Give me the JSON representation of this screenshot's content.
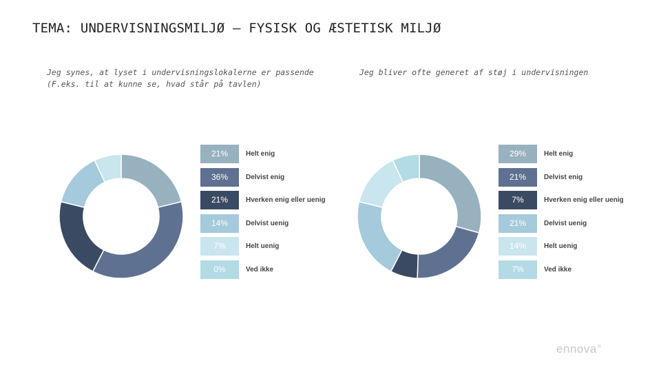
{
  "page": {
    "title": "TEMA: UNDERVISNINGSMILJØ – FYSISK OG ÆSTETISK MILJØ",
    "logo": "ennova",
    "logo_mark": "®"
  },
  "colors": {
    "helt_enig": "#97b1bf",
    "delvist_enig": "#5e7190",
    "hverken": "#3b4a63",
    "delvist_uenig": "#a4cadb",
    "helt_uenig": "#c9e5ee",
    "ved_ikke": "#b2dbe6"
  },
  "chart_data": [
    {
      "type": "pie",
      "title": "Jeg synes, at lyset i undervisningslokalerne er passende (F.eks. til at kunne se, hvad står på tavlen)",
      "title_lines": [
        "Jeg synes, at lyset i undervisningslokalerne er passende",
        "(F.eks. til at kunne se, hvad står på tavlen)"
      ],
      "legend_position": "right",
      "slices": [
        {
          "label": "Helt enig",
          "value": 21,
          "display": "21%",
          "color": "#97b1bf",
          "text_color": "#ffffff"
        },
        {
          "label": "Delvist enig",
          "value": 36,
          "display": "36%",
          "color": "#5e7190",
          "text_color": "#ffffff"
        },
        {
          "label": "Hverken enig eller uenig",
          "value": 21,
          "display": "21%",
          "color": "#3b4a63",
          "text_color": "#ffffff"
        },
        {
          "label": "Delvist uenig",
          "value": 14,
          "display": "14%",
          "color": "#a4cadb",
          "text_color": "#ffffff"
        },
        {
          "label": "Helt uenig",
          "value": 7,
          "display": "7%",
          "color": "#c9e5ee",
          "text_color": "#ffffff"
        },
        {
          "label": "Ved ikke",
          "value": 0,
          "display": "0%",
          "color": "#b2dbe6",
          "text_color": "#ffffff"
        }
      ]
    },
    {
      "type": "pie",
      "title": "Jeg bliver ofte generet af støj i undervisningen",
      "title_lines": [
        "Jeg bliver ofte generet af støj i undervisningen"
      ],
      "legend_position": "right",
      "slices": [
        {
          "label": "Helt enig",
          "value": 29,
          "display": "29%",
          "color": "#97b1bf",
          "text_color": "#ffffff"
        },
        {
          "label": "Delvist enig",
          "value": 21,
          "display": "21%",
          "color": "#5e7190",
          "text_color": "#ffffff"
        },
        {
          "label": "Hverken enig eller uenig",
          "value": 7,
          "display": "7%",
          "color": "#3b4a63",
          "text_color": "#ffffff"
        },
        {
          "label": "Delvist uenig",
          "value": 21,
          "display": "21%",
          "color": "#a4cadb",
          "text_color": "#ffffff"
        },
        {
          "label": "Helt uenig",
          "value": 14,
          "display": "14%",
          "color": "#c9e5ee",
          "text_color": "#ffffff"
        },
        {
          "label": "Ved ikke",
          "value": 7,
          "display": "7%",
          "color": "#b2dbe6",
          "text_color": "#ffffff"
        }
      ]
    }
  ]
}
